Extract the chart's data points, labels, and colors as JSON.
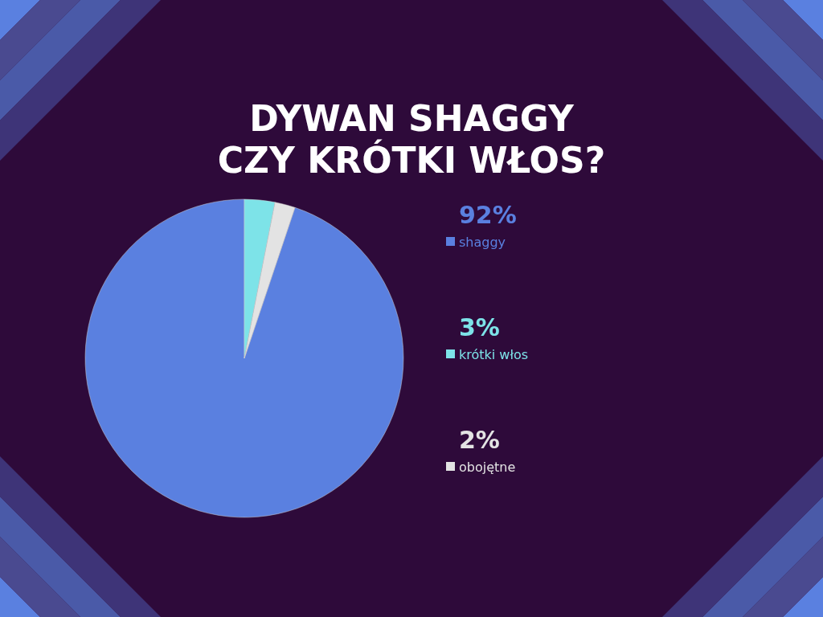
{
  "chart_data": {
    "type": "pie",
    "title": "DYWAN SHAGGY\nCZY KRÓTKI WŁOS?",
    "categories": [
      "shaggy",
      "krótki włos",
      "obojętne"
    ],
    "values": [
      92,
      3,
      2
    ],
    "colors": [
      "#5a80e0",
      "#7de3e8",
      "#e3e3e3"
    ],
    "value_labels": [
      "92%",
      "3%",
      "2%"
    ],
    "legend": "right"
  }
}
